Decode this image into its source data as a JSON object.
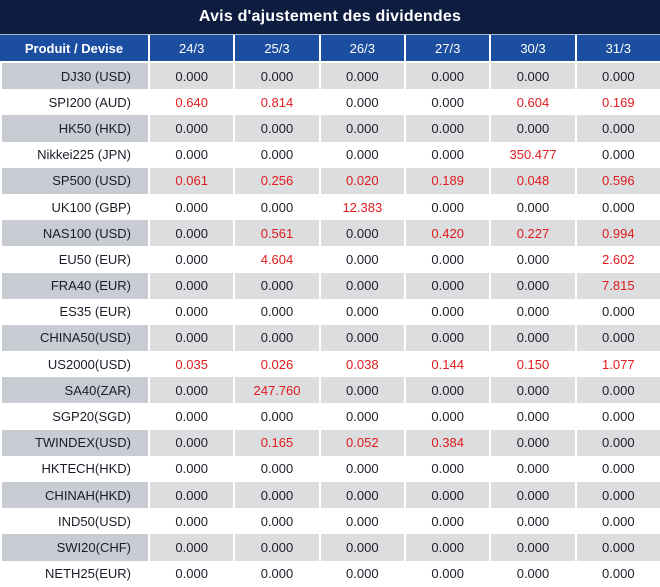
{
  "title": "Avis d'ajustement des dividendes",
  "table": {
    "header": {
      "product_label": "Produit / Devise",
      "dates": [
        "24/3",
        "25/3",
        "26/3",
        "27/3",
        "30/3",
        "31/3"
      ]
    },
    "rows": [
      {
        "product": "DJ30 (USD)",
        "values": [
          "0.000",
          "0.000",
          "0.000",
          "0.000",
          "0.000",
          "0.000"
        ],
        "red": [
          false,
          false,
          false,
          false,
          false,
          false
        ]
      },
      {
        "product": "SPI200 (AUD)",
        "values": [
          "0.640",
          "0.814",
          "0.000",
          "0.000",
          "0.604",
          "0.169"
        ],
        "red": [
          true,
          true,
          false,
          false,
          true,
          true
        ]
      },
      {
        "product": "HK50 (HKD)",
        "values": [
          "0.000",
          "0.000",
          "0.000",
          "0.000",
          "0.000",
          "0.000"
        ],
        "red": [
          false,
          false,
          false,
          false,
          false,
          false
        ]
      },
      {
        "product": "Nikkei225 (JPN)",
        "values": [
          "0.000",
          "0.000",
          "0.000",
          "0.000",
          "350.477",
          "0.000"
        ],
        "red": [
          false,
          false,
          false,
          false,
          true,
          false
        ]
      },
      {
        "product": "SP500 (USD)",
        "values": [
          "0.061",
          "0.256",
          "0.020",
          "0.189",
          "0.048",
          "0.596"
        ],
        "red": [
          true,
          true,
          true,
          true,
          true,
          true
        ]
      },
      {
        "product": "UK100 (GBP)",
        "values": [
          "0.000",
          "0.000",
          "12.383",
          "0.000",
          "0.000",
          "0.000"
        ],
        "red": [
          false,
          false,
          true,
          false,
          false,
          false
        ]
      },
      {
        "product": "NAS100 (USD)",
        "values": [
          "0.000",
          "0.561",
          "0.000",
          "0.420",
          "0.227",
          "0.994"
        ],
        "red": [
          false,
          true,
          false,
          true,
          true,
          true
        ]
      },
      {
        "product": "EU50 (EUR)",
        "values": [
          "0.000",
          "4.604",
          "0.000",
          "0.000",
          "0.000",
          "2.602"
        ],
        "red": [
          false,
          true,
          false,
          false,
          false,
          true
        ]
      },
      {
        "product": "FRA40 (EUR)",
        "values": [
          "0.000",
          "0.000",
          "0.000",
          "0.000",
          "0.000",
          "7.815"
        ],
        "red": [
          false,
          false,
          false,
          false,
          false,
          true
        ]
      },
      {
        "product": "ES35 (EUR)",
        "values": [
          "0.000",
          "0.000",
          "0.000",
          "0.000",
          "0.000",
          "0.000"
        ],
        "red": [
          false,
          false,
          false,
          false,
          false,
          false
        ]
      },
      {
        "product": "CHINA50(USD)",
        "values": [
          "0.000",
          "0.000",
          "0.000",
          "0.000",
          "0.000",
          "0.000"
        ],
        "red": [
          false,
          false,
          false,
          false,
          false,
          false
        ]
      },
      {
        "product": "US2000(USD)",
        "values": [
          "0.035",
          "0.026",
          "0.038",
          "0.144",
          "0.150",
          "1.077"
        ],
        "red": [
          true,
          true,
          true,
          true,
          true,
          true
        ]
      },
      {
        "product": "SA40(ZAR)",
        "values": [
          "0.000",
          "247.760",
          "0.000",
          "0.000",
          "0.000",
          "0.000"
        ],
        "red": [
          false,
          true,
          false,
          false,
          false,
          false
        ]
      },
      {
        "product": "SGP20(SGD)",
        "values": [
          "0.000",
          "0.000",
          "0.000",
          "0.000",
          "0.000",
          "0.000"
        ],
        "red": [
          false,
          false,
          false,
          false,
          false,
          false
        ]
      },
      {
        "product": "TWINDEX(USD)",
        "values": [
          "0.000",
          "0.165",
          "0.052",
          "0.384",
          "0.000",
          "0.000"
        ],
        "red": [
          false,
          true,
          true,
          true,
          false,
          false
        ]
      },
      {
        "product": "HKTECH(HKD)",
        "values": [
          "0.000",
          "0.000",
          "0.000",
          "0.000",
          "0.000",
          "0.000"
        ],
        "red": [
          false,
          false,
          false,
          false,
          false,
          false
        ]
      },
      {
        "product": "CHINAH(HKD)",
        "values": [
          "0.000",
          "0.000",
          "0.000",
          "0.000",
          "0.000",
          "0.000"
        ],
        "red": [
          false,
          false,
          false,
          false,
          false,
          false
        ]
      },
      {
        "product": "IND50(USD)",
        "values": [
          "0.000",
          "0.000",
          "0.000",
          "0.000",
          "0.000",
          "0.000"
        ],
        "red": [
          false,
          false,
          false,
          false,
          false,
          false
        ]
      },
      {
        "product": "SWI20(CHF)",
        "values": [
          "0.000",
          "0.000",
          "0.000",
          "0.000",
          "0.000",
          "0.000"
        ],
        "red": [
          false,
          false,
          false,
          false,
          false,
          false
        ]
      },
      {
        "product": "NETH25(EUR)",
        "values": [
          "0.000",
          "0.000",
          "0.000",
          "0.000",
          "0.000",
          "0.000"
        ],
        "red": [
          false,
          false,
          false,
          false,
          false,
          false
        ]
      }
    ]
  },
  "colors": {
    "title_bg": "#0d1c3f",
    "header_bg": "#1b4da0",
    "stripe_product_bg": "#c9ccd3",
    "stripe_data_bg": "#dcddde",
    "row_bg": "#ffffff",
    "value_text": "#1c1c28",
    "highlight_red": "#e11b1f",
    "header_text": "#ffffff"
  }
}
